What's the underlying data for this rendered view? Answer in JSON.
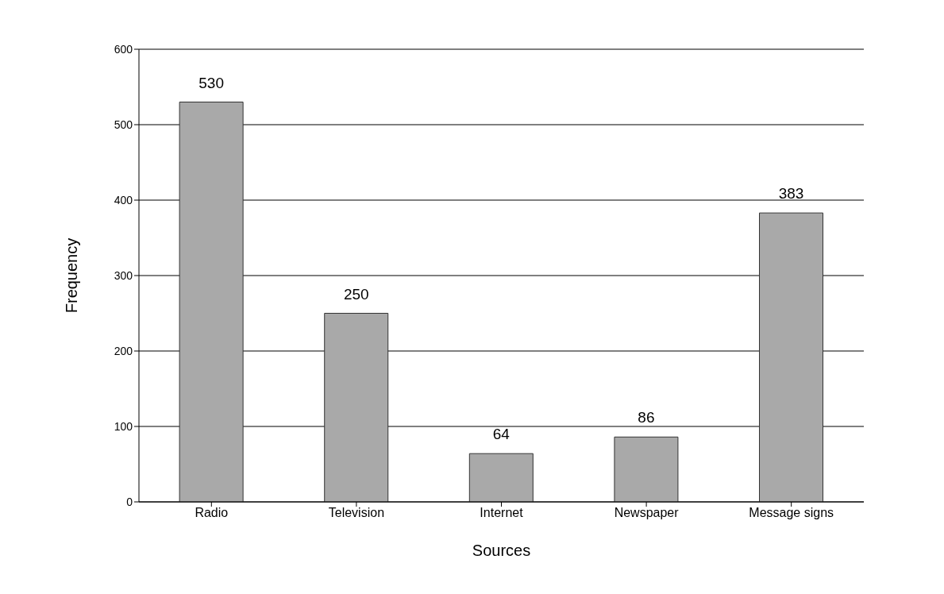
{
  "chart_data": {
    "type": "bar",
    "xlabel": "Sources",
    "ylabel": "Frequency",
    "categories": [
      "Radio",
      "Television",
      "Internet",
      "Newspaper",
      "Message signs"
    ],
    "values": [
      530,
      250,
      64,
      86,
      383
    ],
    "color": "#a9a9a9",
    "ylim": [
      0,
      600
    ],
    "yticks": [
      0,
      100,
      200,
      300,
      400,
      500,
      600
    ],
    "grid": "y",
    "data_labels": true
  }
}
